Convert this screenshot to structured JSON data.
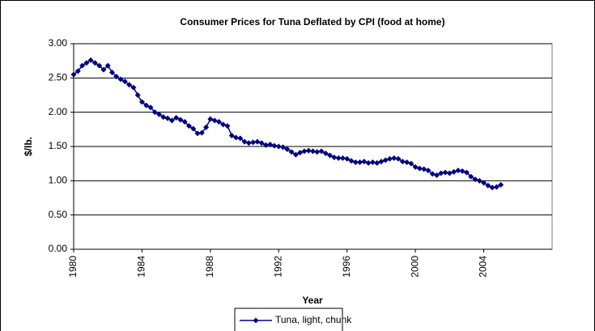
{
  "chart_data": {
    "type": "line",
    "title": "Consumer Prices for Tuna Deflated by CPI (food at home)",
    "xlabel": "Year",
    "ylabel": "$/lb.",
    "x": [
      1980,
      1980.25,
      1980.5,
      1980.75,
      1981,
      1981.25,
      1981.5,
      1981.75,
      1982,
      1982.25,
      1982.5,
      1982.75,
      1983,
      1983.25,
      1983.5,
      1983.75,
      1984,
      1984.25,
      1984.5,
      1984.75,
      1985,
      1985.25,
      1985.5,
      1985.75,
      1986,
      1986.25,
      1986.5,
      1986.75,
      1987,
      1987.25,
      1987.5,
      1987.75,
      1988,
      1988.25,
      1988.5,
      1988.75,
      1989,
      1989.25,
      1989.5,
      1989.75,
      1990,
      1990.25,
      1990.5,
      1990.75,
      1991,
      1991.25,
      1991.5,
      1991.75,
      1992,
      1992.25,
      1992.5,
      1992.75,
      1993,
      1993.25,
      1993.5,
      1993.75,
      1994,
      1994.25,
      1994.5,
      1994.75,
      1995,
      1995.25,
      1995.5,
      1995.75,
      1996,
      1996.25,
      1996.5,
      1996.75,
      1997,
      1997.25,
      1997.5,
      1997.75,
      1998,
      1998.25,
      1998.5,
      1998.75,
      1999,
      1999.25,
      1999.5,
      1999.75,
      2000,
      2000.25,
      2000.5,
      2000.75,
      2001,
      2001.25,
      2001.5,
      2001.75,
      2002,
      2002.25,
      2002.5,
      2002.75,
      2003,
      2003.25,
      2003.5,
      2003.75,
      2004,
      2004.25,
      2004.5,
      2004.75,
      2005
    ],
    "series": [
      {
        "name": "Tuna, light, chunk",
        "color": "#000080",
        "values": [
          2.55,
          2.6,
          2.68,
          2.72,
          2.76,
          2.72,
          2.68,
          2.62,
          2.68,
          2.58,
          2.52,
          2.48,
          2.45,
          2.4,
          2.36,
          2.25,
          2.15,
          2.1,
          2.07,
          2.0,
          1.97,
          1.93,
          1.91,
          1.88,
          1.92,
          1.89,
          1.86,
          1.8,
          1.76,
          1.69,
          1.7,
          1.78,
          1.9,
          1.88,
          1.86,
          1.82,
          1.8,
          1.66,
          1.63,
          1.62,
          1.57,
          1.55,
          1.56,
          1.57,
          1.55,
          1.52,
          1.53,
          1.51,
          1.5,
          1.49,
          1.46,
          1.42,
          1.38,
          1.41,
          1.43,
          1.44,
          1.43,
          1.42,
          1.43,
          1.4,
          1.37,
          1.34,
          1.33,
          1.33,
          1.32,
          1.29,
          1.27,
          1.27,
          1.28,
          1.26,
          1.27,
          1.26,
          1.28,
          1.3,
          1.32,
          1.33,
          1.32,
          1.28,
          1.27,
          1.25,
          1.2,
          1.18,
          1.17,
          1.15,
          1.1,
          1.08,
          1.11,
          1.12,
          1.11,
          1.13,
          1.15,
          1.14,
          1.12,
          1.06,
          1.02,
          1.0,
          0.97,
          0.93,
          0.9,
          0.91,
          0.94
        ]
      }
    ],
    "xlim": [
      1980,
      2008
    ],
    "xticks": [
      1980,
      1984,
      1988,
      1992,
      1996,
      2000,
      2004
    ],
    "ylim": [
      0,
      3
    ],
    "yticks": [
      {
        "value": 0,
        "label": "0.00"
      },
      {
        "value": 0.5,
        "label": "0.50"
      },
      {
        "value": 1,
        "label": "1.00"
      },
      {
        "value": 1.5,
        "label": "1.50"
      },
      {
        "value": 2,
        "label": "2.00"
      },
      {
        "value": 2.5,
        "label": "2.50"
      },
      {
        "value": 3,
        "label": "3.00"
      }
    ],
    "grid": true,
    "legend": "bottom"
  }
}
